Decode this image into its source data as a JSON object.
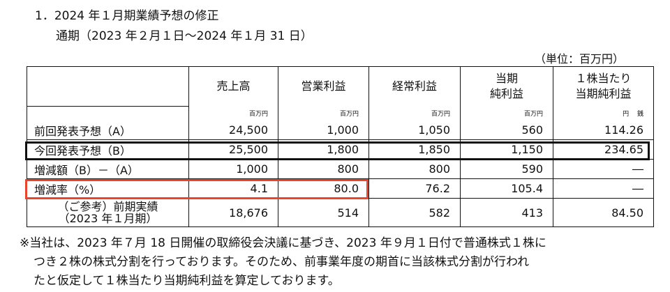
{
  "section": {
    "title": "1．2024 年１月期業績予想の修正",
    "subtitle": "通期（2023 年２月１日～2024 年１月 31 日）",
    "unit": "（単位：百万円）"
  },
  "table": {
    "headers": {
      "sales": "売上高",
      "op_profit": "営業利益",
      "ord_profit": "経常利益",
      "net_line1": "当期",
      "net_line2": "純利益",
      "eps_line1": "１株当たり",
      "eps_line2": "当期純利益"
    },
    "units": {
      "sales": "百万円",
      "op_profit": "百万円",
      "ord_profit": "百万円",
      "net": "百万円",
      "eps": "円　 銭"
    },
    "rows": [
      {
        "label": "前回発表予想（A）",
        "sales": "24,500",
        "op": "1,000",
        "ord": "1,050",
        "net": "560",
        "eps": "114.26"
      },
      {
        "label": "今回発表予想（B）",
        "sales": "25,500",
        "op": "1,800",
        "ord": "1,850",
        "net": "1,150",
        "eps": "234.65"
      },
      {
        "label": "増減額（B）－（A）",
        "sales": "1,000",
        "op": "800",
        "ord": "800",
        "net": "590",
        "eps": "―"
      },
      {
        "label": "増減率（%）",
        "sales": "4.1",
        "op": "80.0",
        "ord": "76.2",
        "net": "105.4",
        "eps": "―"
      }
    ],
    "last_row": {
      "label_line1": "（ご参考）前期実績",
      "label_line2": "（2023 年１月期）",
      "sales": "18,676",
      "op": "514",
      "ord": "582",
      "net": "413",
      "eps": "84.50"
    }
  },
  "notes": {
    "line1": "※当社は、2023 年７月 18 日開催の取締役会決議に基づき、2023 年９月１日付で普通株式１株に",
    "line2": "つき２株の株式分割を行っております。そのため、前事業年度の期首に当該株式分割が行われ",
    "line3": "たと仮定して１株当たり当期純利益を算定しております。"
  },
  "colors": {
    "highlight_red": "#e8452c",
    "highlight_black": "#111111"
  }
}
